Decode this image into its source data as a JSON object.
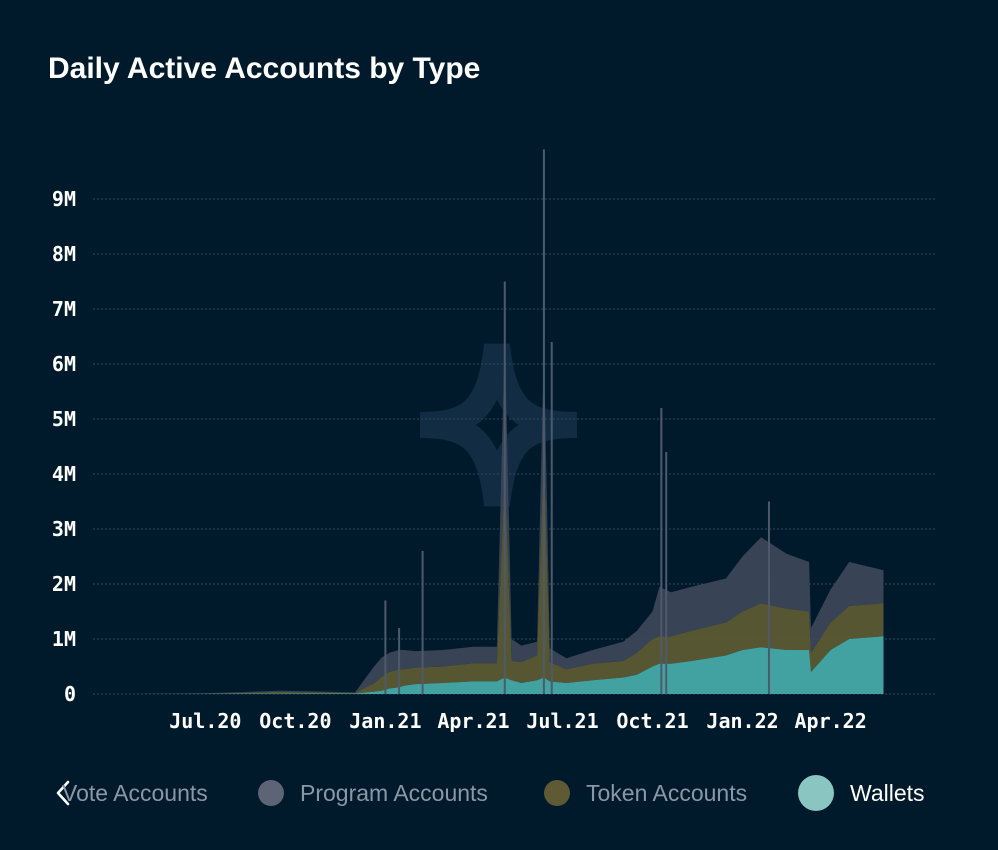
{
  "chart_data": {
    "type": "area",
    "title": "Daily Active Accounts by Type",
    "xlabel": "",
    "ylabel": "",
    "ylim": [
      0,
      10000000
    ],
    "y_ticks": [
      0,
      1000000,
      2000000,
      3000000,
      4000000,
      5000000,
      6000000,
      7000000,
      8000000,
      9000000
    ],
    "y_tick_labels": [
      "0",
      "1M",
      "2M",
      "3M",
      "4M",
      "5M",
      "6M",
      "7M",
      "8M",
      "9M"
    ],
    "x_range": [
      "2020-04-15",
      "2022-06-15"
    ],
    "x_ticks": [
      "2020-07-01",
      "2020-10-01",
      "2021-01-01",
      "2021-04-01",
      "2021-07-01",
      "2021-10-01",
      "2022-01-01",
      "2022-04-01"
    ],
    "x_tick_labels": [
      "Jul.20",
      "Oct.20",
      "Jan.21",
      "Apr.21",
      "Jul.21",
      "Oct.21",
      "Jan.22",
      "Apr.22"
    ],
    "stacked": true,
    "grid": true,
    "legend_position": "bottom",
    "x": [
      "2020-04-20",
      "2020-07-01",
      "2020-09-15",
      "2020-10-15",
      "2020-12-01",
      "2020-12-20",
      "2020-12-28",
      "2021-01-05",
      "2021-01-15",
      "2021-01-20",
      "2021-02-01",
      "2021-03-01",
      "2021-04-01",
      "2021-04-25",
      "2021-05-03",
      "2021-05-10",
      "2021-05-20",
      "2021-06-05",
      "2021-06-12",
      "2021-06-18",
      "2021-07-05",
      "2021-08-01",
      "2021-09-01",
      "2021-09-15",
      "2021-10-01",
      "2021-10-08",
      "2021-10-20",
      "2021-11-10",
      "2021-12-15",
      "2022-01-01",
      "2022-01-20",
      "2022-02-15",
      "2022-03-10",
      "2022-03-12",
      "2022-04-01",
      "2022-04-20",
      "2022-05-25"
    ],
    "series": [
      {
        "name": "Wallets",
        "color": "#48aeab",
        "values": [
          0,
          3000,
          8000,
          10000,
          10000,
          40000,
          60000,
          100000,
          120000,
          150000,
          180000,
          200000,
          230000,
          230000,
          300000,
          250000,
          200000,
          250000,
          300000,
          230000,
          200000,
          250000,
          300000,
          350000,
          500000,
          550000,
          550000,
          600000,
          700000,
          800000,
          850000,
          800000,
          800000,
          400000,
          800000,
          1000000,
          1050000
        ]
      },
      {
        "name": "Token Accounts",
        "color": "#5e5b34",
        "values": [
          0,
          5000,
          30000,
          20000,
          10000,
          150000,
          250000,
          300000,
          330000,
          300000,
          300000,
          300000,
          330000,
          330000,
          3700000,
          350000,
          380000,
          450000,
          4200000,
          350000,
          250000,
          300000,
          300000,
          400000,
          500000,
          500000,
          500000,
          550000,
          600000,
          700000,
          800000,
          750000,
          700000,
          350000,
          500000,
          600000,
          600000
        ]
      },
      {
        "name": "Program Accounts",
        "color": "#3d4759",
        "values": [
          0,
          5000,
          20000,
          20000,
          10000,
          300000,
          350000,
          350000,
          350000,
          350000,
          300000,
          300000,
          300000,
          300000,
          2500000,
          400000,
          300000,
          250000,
          1800000,
          250000,
          200000,
          250000,
          350000,
          400000,
          500000,
          900000,
          800000,
          800000,
          800000,
          1000000,
          1200000,
          1000000,
          900000,
          450000,
          600000,
          800000,
          600000
        ]
      },
      {
        "name": "Vote Accounts",
        "color": "#2c3e58",
        "values": [
          0,
          0,
          0,
          0,
          0,
          0,
          0,
          0,
          0,
          0,
          0,
          0,
          0,
          0,
          0,
          0,
          0,
          0,
          0,
          0,
          0,
          0,
          0,
          0,
          0,
          0,
          0,
          0,
          0,
          0,
          0,
          0,
          0,
          0,
          0,
          0,
          0
        ]
      }
    ],
    "spikes": [
      {
        "x": "2021-01-01",
        "value": 1700000
      },
      {
        "x": "2021-01-15",
        "value": 1200000
      },
      {
        "x": "2021-02-08",
        "value": 2600000
      },
      {
        "x": "2021-05-03",
        "value": 7500000
      },
      {
        "x": "2021-06-12",
        "value": 9900000
      },
      {
        "x": "2021-06-20",
        "value": 6400000
      },
      {
        "x": "2021-10-10",
        "value": 5200000
      },
      {
        "x": "2021-10-15",
        "value": 4400000
      },
      {
        "x": "2022-01-28",
        "value": 3500000
      }
    ]
  },
  "legend": {
    "items": [
      {
        "label": "Vote Accounts",
        "color": "#2c3e58",
        "active": false
      },
      {
        "label": "Program Accounts",
        "color": "#6c7282",
        "active": false
      },
      {
        "label": "Token Accounts",
        "color": "#5e5b34",
        "active": false
      },
      {
        "label": "Wallets",
        "color": "#8bc5c1",
        "active": true
      }
    ],
    "prev_icon": "chevron-left-icon"
  },
  "colors": {
    "background": "#011a2b",
    "grid": "#2a4a5e",
    "text": "#ffffff",
    "legend_inactive_text": "#8a97a6"
  }
}
